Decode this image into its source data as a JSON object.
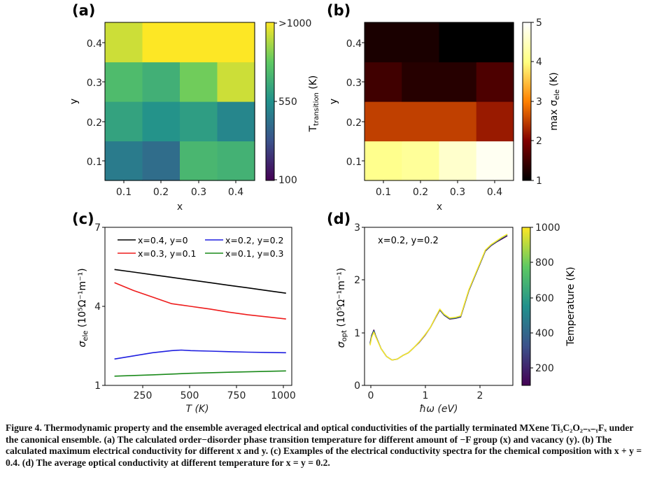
{
  "panels": {
    "a": {
      "label": "(a)",
      "xlabel": "x",
      "ylabel": "y",
      "xticks": [
        "0.1",
        "0.2",
        "0.3",
        "0.4"
      ],
      "yticks": [
        "0.1",
        "0.2",
        "0.3",
        "0.4"
      ],
      "colorbar": {
        "label_main": "T",
        "label_sub": "transition",
        "label_unit": " (K)",
        "ticks": [
          {
            "label": ">1000",
            "value": 1000
          },
          {
            "label": "550",
            "value": 550
          },
          {
            "label": "100",
            "value": 100
          }
        ]
      }
    },
    "b": {
      "label": "(b)",
      "xlabel": "x",
      "ylabel": "y",
      "xticks": [
        "0.1",
        "0.2",
        "0.3",
        "0.4"
      ],
      "yticks": [
        "0.1",
        "0.2",
        "0.3",
        "0.4"
      ],
      "colorbar": {
        "label_main": "max σ",
        "label_sub": "ele",
        "label_unit": " (K)",
        "ticks": [
          "1",
          "2",
          "3",
          "4",
          "5"
        ]
      }
    },
    "c": {
      "label": "(c)",
      "xlabel": "T (K)",
      "ylabel_main": "σ",
      "ylabel_sub": "ele",
      "ylabel_rest": " (10⁵Ω⁻¹m⁻¹)",
      "xticks": [
        "250",
        "500",
        "750",
        "1000"
      ],
      "yticks": [
        "1",
        "4",
        "7"
      ]
    },
    "d": {
      "label": "(d)",
      "xlabel": "ħω (eV)",
      "ylabel_main": "σ",
      "ylabel_sub": "opt",
      "ylabel_rest": " (10⁵Ω⁻¹m⁻¹)",
      "xticks": [
        "0",
        "1",
        "2"
      ],
      "yticks": [
        "0",
        "1",
        "2",
        "3"
      ],
      "annotation": "x=0.2, y=0.2",
      "colorbar": {
        "label": "Temperature (K)",
        "ticks": [
          "200",
          "400",
          "600",
          "800",
          "1000"
        ]
      }
    }
  },
  "caption": {
    "lead": "Figure 4. Thermodynamic property and the ensemble averaged electrical and optical conductivities of the partially terminated MXene Ti₃C₂O₂₋ₓ₋ᵧFₓ under the canonical ensemble. (a) The calculated order−disorder phase transition temperature for different amount of −F group (x) and vacancy (y). (b) The calculated maximum electrical conductivity for different x and y. (c) Examples of the electrical conductivity spectra for the chemical composition with x + y = 0.4. (d) The average optical conductivity at different temperature for x = y = 0.2."
  },
  "chart_data": [
    {
      "type": "heatmap",
      "panel": "(a)",
      "x": [
        0.1,
        0.2,
        0.3,
        0.4
      ],
      "y": [
        0.1,
        0.2,
        0.3,
        0.4
      ],
      "values": [
        [
          470,
          420,
          700,
          680
        ],
        [
          620,
          560,
          600,
          510
        ],
        [
          720,
          670,
          800,
          930
        ],
        [
          930,
          1000,
          1000,
          1000
        ]
      ],
      "colormap": "viridis",
      "clim": [
        100,
        1000
      ],
      "xlabel": "x",
      "ylabel": "y",
      "colorbar_label": "T_transition (K)"
    },
    {
      "type": "heatmap",
      "panel": "(b)",
      "x": [
        0.1,
        0.2,
        0.3,
        0.4
      ],
      "y": [
        0.1,
        0.2,
        0.3,
        0.4
      ],
      "values": [
        [
          4.1,
          4.2,
          4.6,
          4.9
        ],
        [
          2.5,
          2.5,
          2.5,
          2.2
        ],
        [
          1.5,
          1.3,
          1.3,
          1.6
        ],
        [
          1.2,
          1.2,
          1.0,
          1.0
        ]
      ],
      "colormap": "afmhot",
      "clim": [
        1,
        5
      ],
      "xlabel": "x",
      "ylabel": "y",
      "colorbar_label": "max σ_ele (K)"
    },
    {
      "type": "line",
      "panel": "(c)",
      "xlabel": "T (K)",
      "ylabel": "σ_ele (10⁵Ω⁻¹m⁻¹)",
      "xlim": [
        50,
        1030
      ],
      "ylim": [
        1,
        7
      ],
      "legend": "top, two columns",
      "series": [
        {
          "name": "x=0.4, y=0",
          "color": "#000000",
          "x": [
            100,
            200,
            300,
            400,
            500,
            600,
            700,
            800,
            900,
            1000
          ],
          "y": [
            5.4,
            5.3,
            5.2,
            5.1,
            5.0,
            4.9,
            4.8,
            4.7,
            4.6,
            4.5
          ]
        },
        {
          "name": "x=0.2, y=0.2",
          "color": "#1f1fe0",
          "x": [
            100,
            200,
            300,
            400,
            450,
            500,
            600,
            700,
            800,
            900,
            1000
          ],
          "y": [
            2.0,
            2.12,
            2.24,
            2.32,
            2.34,
            2.32,
            2.3,
            2.28,
            2.26,
            2.25,
            2.24
          ]
        },
        {
          "name": "x=0.3, y=0.1",
          "color": "#ee1c1c",
          "x": [
            100,
            200,
            300,
            400,
            450,
            500,
            550,
            600,
            700,
            800,
            900,
            1000
          ],
          "y": [
            4.9,
            4.6,
            4.35,
            4.1,
            4.05,
            4.0,
            3.95,
            3.9,
            3.78,
            3.68,
            3.6,
            3.52
          ]
        },
        {
          "name": "x=0.1, y=0.3",
          "color": "#1a8a1a",
          "x": [
            100,
            300,
            500,
            700,
            1000
          ],
          "y": [
            1.35,
            1.4,
            1.46,
            1.5,
            1.55
          ]
        }
      ]
    },
    {
      "type": "line",
      "panel": "(d)",
      "xlabel": "ħω (eV)",
      "ylabel": "σ_opt (10⁵Ω⁻¹m⁻¹)",
      "xlim": [
        -0.1,
        2.6
      ],
      "ylim": [
        0,
        3
      ],
      "clim": [
        100,
        1000
      ],
      "colormap": "viridis",
      "series": [
        {
          "name": "T ≈ 100 K",
          "color": "#440154",
          "x": [
            0.0,
            0.03,
            0.07,
            0.1,
            0.2,
            0.3,
            0.4,
            0.5,
            0.6,
            0.7,
            0.8,
            0.9,
            1.0,
            1.1,
            1.2,
            1.27,
            1.35,
            1.45,
            1.55,
            1.65,
            1.8,
            1.9,
            2.0,
            2.1,
            2.2,
            2.3,
            2.4,
            2.5
          ],
          "y": [
            0.8,
            0.95,
            1.05,
            0.95,
            0.7,
            0.55,
            0.48,
            0.5,
            0.57,
            0.62,
            0.72,
            0.82,
            0.95,
            1.1,
            1.3,
            1.43,
            1.33,
            1.26,
            1.27,
            1.3,
            1.8,
            2.05,
            2.3,
            2.55,
            2.65,
            2.72,
            2.78,
            2.84
          ]
        },
        {
          "name": "T ≈ 550 K",
          "color": "#21918c",
          "x": [
            0.0,
            0.03,
            0.07,
            0.1,
            0.2,
            0.3,
            0.4,
            0.5,
            0.6,
            0.7,
            0.8,
            0.9,
            1.0,
            1.1,
            1.2,
            1.27,
            1.35,
            1.45,
            1.55,
            1.65,
            1.8,
            1.9,
            2.0,
            2.1,
            2.2,
            2.3,
            2.4,
            2.5
          ],
          "y": [
            0.78,
            0.93,
            1.03,
            0.94,
            0.7,
            0.55,
            0.48,
            0.5,
            0.57,
            0.62,
            0.72,
            0.83,
            0.96,
            1.1,
            1.31,
            1.44,
            1.34,
            1.27,
            1.28,
            1.31,
            1.81,
            2.06,
            2.31,
            2.56,
            2.66,
            2.73,
            2.8,
            2.86
          ]
        },
        {
          "name": "T ≈ 1000 K",
          "color": "#fde725",
          "x": [
            0.0,
            0.03,
            0.07,
            0.1,
            0.2,
            0.3,
            0.4,
            0.5,
            0.6,
            0.7,
            0.8,
            0.9,
            1.0,
            1.1,
            1.2,
            1.27,
            1.35,
            1.45,
            1.55,
            1.65,
            1.8,
            1.9,
            2.0,
            2.1,
            2.2,
            2.3,
            2.4,
            2.5
          ],
          "y": [
            0.76,
            0.91,
            1.01,
            0.93,
            0.7,
            0.55,
            0.48,
            0.5,
            0.57,
            0.62,
            0.72,
            0.83,
            0.96,
            1.1,
            1.31,
            1.45,
            1.35,
            1.28,
            1.29,
            1.32,
            1.82,
            2.07,
            2.32,
            2.57,
            2.67,
            2.74,
            2.81,
            2.87
          ]
        }
      ]
    }
  ]
}
